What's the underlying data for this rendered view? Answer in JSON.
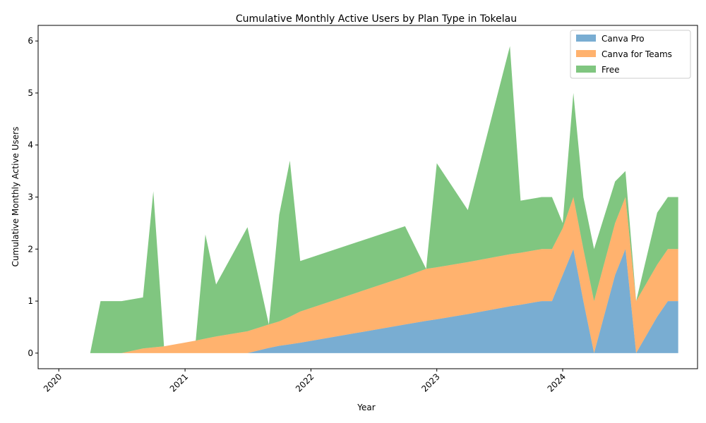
{
  "chart_data": {
    "type": "area",
    "stacked": true,
    "title": "Cumulative Monthly Active Users by Plan Type in Tokelau",
    "xlabel": "Year",
    "ylabel": "Cumulative Monthly Active Users",
    "x_ticks": [
      "2020",
      "2021",
      "2022",
      "2023",
      "2024"
    ],
    "y_ticks": [
      "0",
      "1",
      "2",
      "3",
      "4",
      "5",
      "6"
    ],
    "ylim": [
      -0.3,
      6.3
    ],
    "xlim": [
      "2019-11-02",
      "2025-01-26"
    ],
    "grid": false,
    "legend_position": "top-right",
    "x": [
      "2020-04-01",
      "2020-05-01",
      "2020-07-01",
      "2020-09-01",
      "2020-10-01",
      "2020-11-01",
      "2021-02-01",
      "2021-03-01",
      "2021-04-01",
      "2021-07-01",
      "2021-09-01",
      "2021-10-01",
      "2021-11-01",
      "2021-12-01",
      "2022-10-01",
      "2022-12-01",
      "2023-01-01",
      "2023-04-01",
      "2023-08-01",
      "2023-09-01",
      "2023-11-01",
      "2023-12-01",
      "2024-01-01",
      "2024-02-01",
      "2024-03-01",
      "2024-04-01",
      "2024-06-01",
      "2024-07-01",
      "2024-08-01",
      "2024-10-01",
      "2024-11-01",
      "2024-12-01"
    ],
    "series": [
      {
        "name": "Canva Pro",
        "color": "#1f77b4",
        "values": [
          0,
          0,
          0,
          0,
          0,
          0,
          0,
          0,
          0,
          0,
          0.1,
          0.14,
          0.17,
          0.2,
          0.55,
          0.62,
          0.65,
          0.75,
          0.9,
          0.93,
          1.0,
          1.0,
          1.5,
          2.0,
          1.0,
          0.0,
          1.5,
          2.0,
          0.0,
          0.7,
          1.0,
          1.0
        ]
      },
      {
        "name": "Canva for Teams",
        "color": "#ff7f0e",
        "values": [
          0,
          0,
          0,
          0.09,
          0.11,
          0.13,
          0.24,
          0.28,
          0.32,
          0.42,
          0.45,
          0.47,
          0.53,
          0.6,
          0.92,
          1.0,
          1.0,
          1.0,
          1.0,
          1.0,
          1.0,
          1.0,
          0.9,
          1.0,
          1.0,
          1.0,
          1.0,
          1.0,
          1.0,
          1.0,
          1.0,
          1.0
        ]
      },
      {
        "name": "Free",
        "color": "#2ca02c",
        "values": [
          0,
          1.0,
          1.0,
          0.98,
          3.0,
          0.0,
          0.0,
          2.0,
          1.0,
          2.0,
          0.0,
          2.05,
          3.0,
          0.97,
          0.97,
          0.0,
          2.0,
          1.0,
          4.0,
          1.0,
          1.0,
          1.0,
          0.1,
          2.0,
          1.0,
          1.0,
          0.8,
          0.5,
          0.0,
          1.0,
          1.0,
          1.0
        ]
      }
    ]
  }
}
